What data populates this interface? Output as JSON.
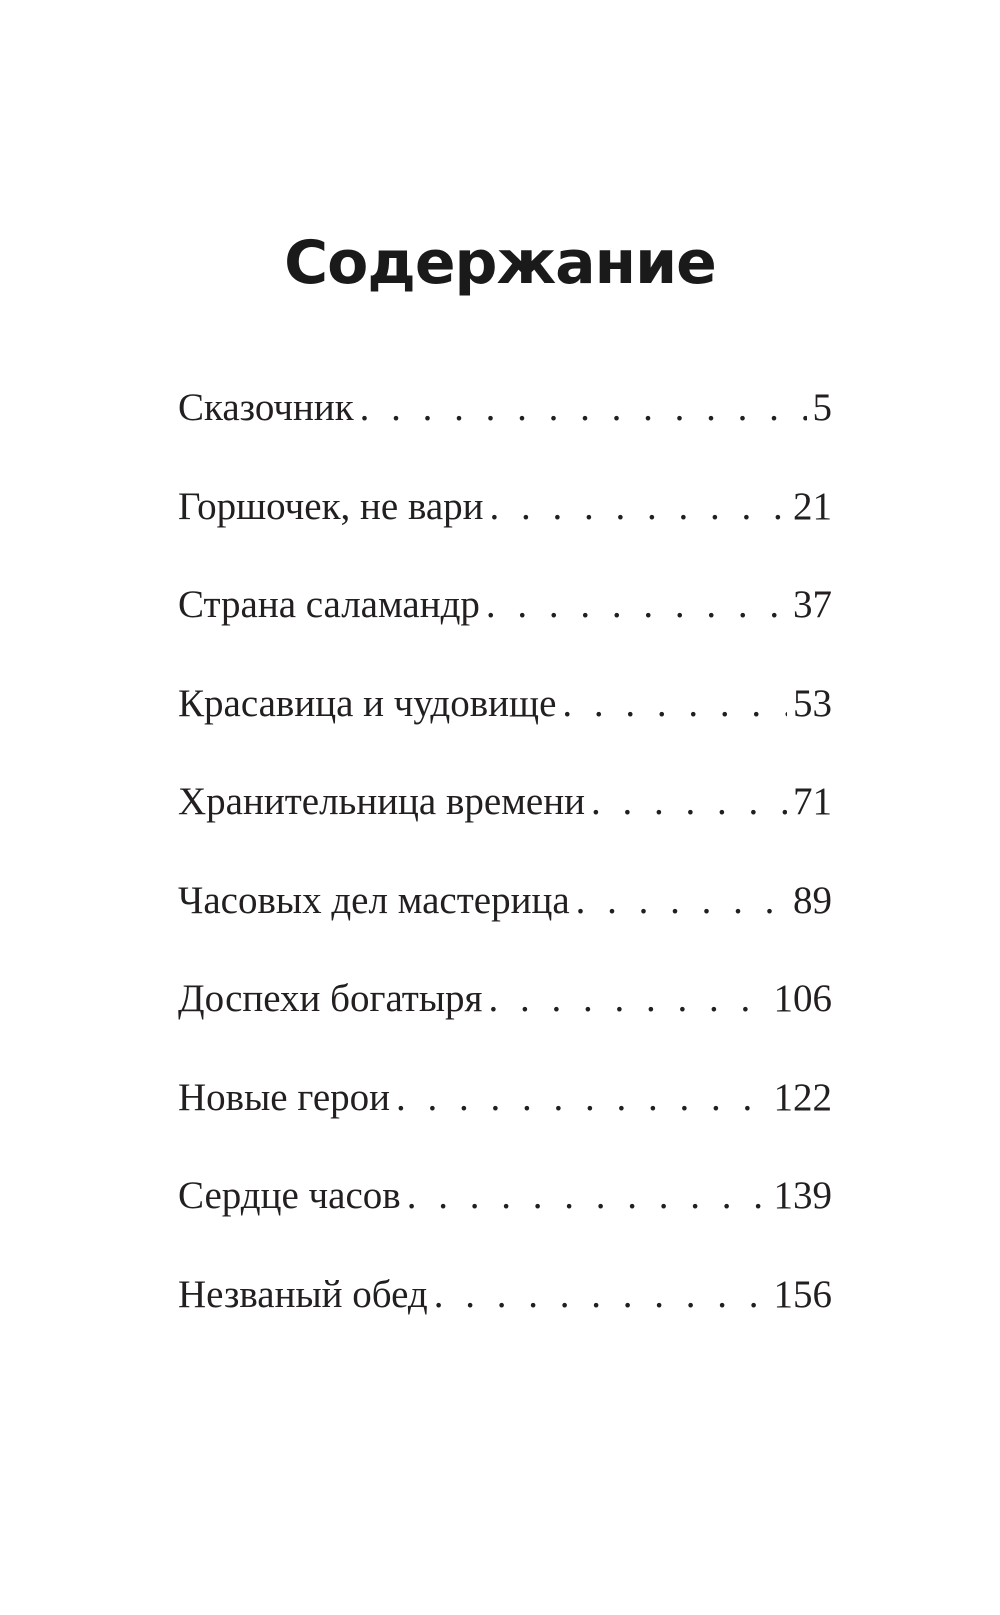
{
  "title": "Содержание",
  "entries": [
    {
      "label": "Сказочник",
      "page": "5"
    },
    {
      "label": "Горшочек, не вари",
      "page": "21"
    },
    {
      "label": "Страна саламандр",
      "page": "37"
    },
    {
      "label": "Красавица и чудовище",
      "page": "53"
    },
    {
      "label": "Хранительница времени",
      "page": "71"
    },
    {
      "label": "Часовых дел мастерица",
      "page": "89"
    },
    {
      "label": "Доспехи богатыря",
      "page": "106"
    },
    {
      "label": "Новые герои",
      "page": "122"
    },
    {
      "label": "Сердце часов",
      "page": "139"
    },
    {
      "label": "Незваный обед",
      "page": "156"
    }
  ]
}
